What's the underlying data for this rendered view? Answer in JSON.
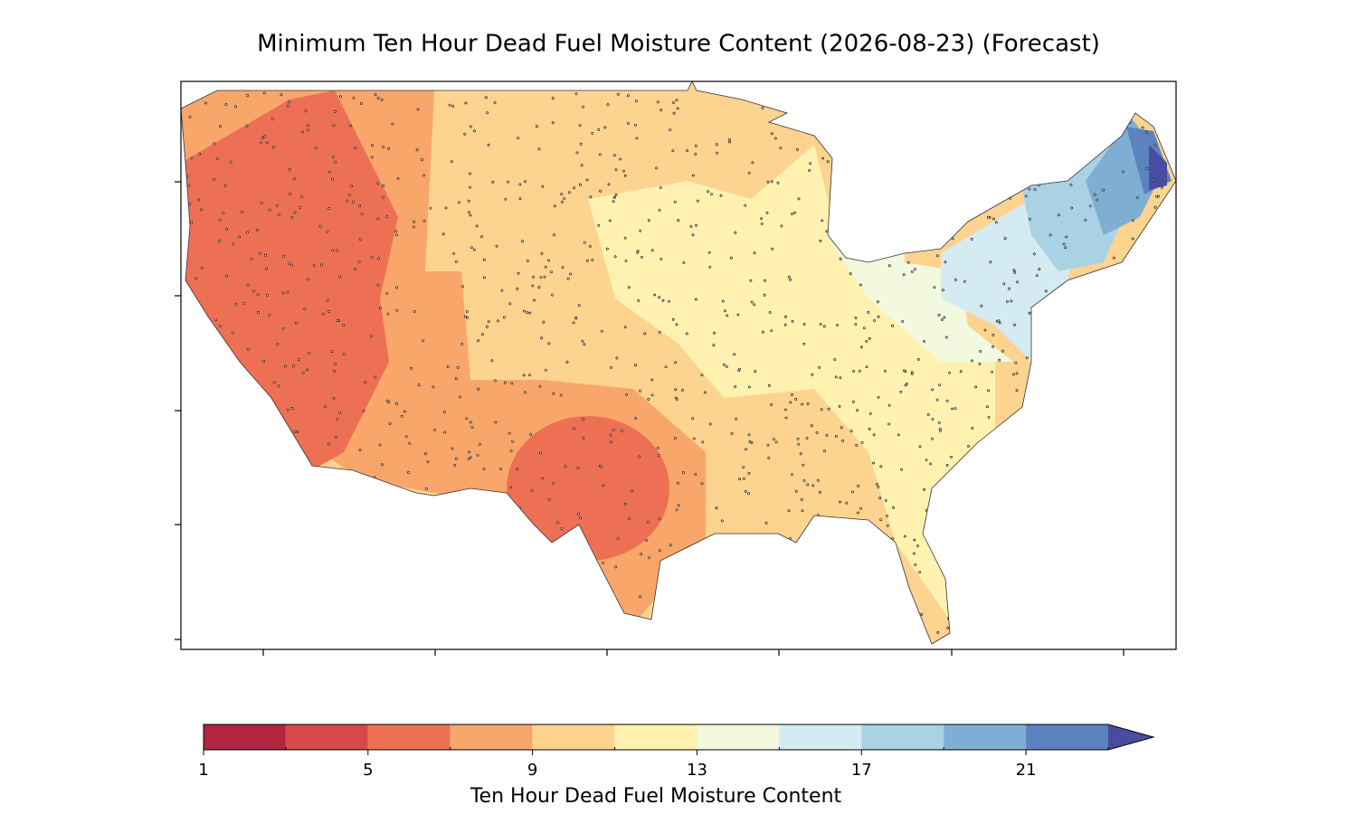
{
  "title": "Minimum Ten Hour Dead Fuel Moisture Content (2026-08-23) (Forecast)",
  "colorbar": {
    "label": "Ten Hour Dead Fuel Moisture Content",
    "levels": [
      1,
      3,
      5,
      7,
      9,
      11,
      13,
      15,
      17,
      19,
      21,
      23
    ],
    "colors": [
      "#b2243f",
      "#d6494a",
      "#ee7054",
      "#f9a66b",
      "#fdd390",
      "#fff2b0",
      "#f3f9df",
      "#d4ebf2",
      "#a9d2e5",
      "#7faed3",
      "#5a83c0"
    ],
    "extend_color": "#4a4ca0",
    "ticks": [
      1,
      5,
      9,
      13,
      17,
      21
    ]
  }
}
